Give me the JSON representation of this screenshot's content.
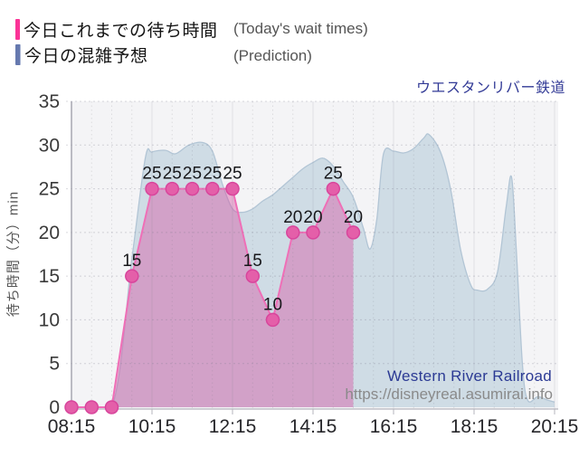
{
  "legend": {
    "items": [
      {
        "label": "今日これまでの待ち時間",
        "note": "(Today's wait times)",
        "color": "#fb3397"
      },
      {
        "label": "今日の混雑予想",
        "note": "(Prediction)",
        "color": "#6679af"
      }
    ]
  },
  "watermark": {
    "name": "Western River Railroad",
    "url": "https://disneyreal.asumirai.info"
  },
  "chart_data": {
    "type": "area",
    "title": "ウエスタンリバー鉄道",
    "ylabel": "待ち時間（分）min",
    "ylim": [
      0,
      35
    ],
    "y_ticks": [
      0,
      5,
      10,
      15,
      20,
      25,
      30,
      35
    ],
    "x_ticks": [
      "08:15",
      "10:15",
      "12:15",
      "14:15",
      "16:15",
      "18:15",
      "20:15"
    ],
    "x_start": "08:15",
    "x_end": "20:15",
    "grid": {
      "h_step": 5,
      "v_step_minutes": 30,
      "major_every_minutes": 120,
      "grid_on": true
    },
    "legend_position": "top-left",
    "series": [
      {
        "name": "今日の混雑予想 (Prediction)",
        "kind": "prediction",
        "style": "smooth_area",
        "fill": "#cfdce5",
        "stroke": "#b2c5d5",
        "points": [
          [
            "08:15",
            0
          ],
          [
            "09:15",
            0
          ],
          [
            "09:45",
            17
          ],
          [
            "10:05",
            28.5
          ],
          [
            "10:15",
            29.2
          ],
          [
            "10:35",
            29.4
          ],
          [
            "10:50",
            29.0
          ],
          [
            "11:10",
            30.0
          ],
          [
            "11:30",
            30.3
          ],
          [
            "11:45",
            29.3
          ],
          [
            "12:00",
            25.5
          ],
          [
            "12:15",
            22.7
          ],
          [
            "12:30",
            22.3
          ],
          [
            "12:45",
            22.7
          ],
          [
            "13:00",
            23.6
          ],
          [
            "13:15",
            24.3
          ],
          [
            "13:30",
            25.3
          ],
          [
            "13:45",
            26.3
          ],
          [
            "14:00",
            27.3
          ],
          [
            "14:15",
            28.0
          ],
          [
            "14:30",
            28.5
          ],
          [
            "14:45",
            27.6
          ],
          [
            "15:00",
            25.8
          ],
          [
            "15:15",
            24.0
          ],
          [
            "15:30",
            20.5
          ],
          [
            "15:40",
            18.1
          ],
          [
            "15:50",
            21.5
          ],
          [
            "16:00",
            29.0
          ],
          [
            "16:15",
            29.3
          ],
          [
            "16:30",
            29.1
          ],
          [
            "16:45",
            29.6
          ],
          [
            "17:00",
            30.8
          ],
          [
            "17:08",
            31.2
          ],
          [
            "17:25",
            29.2
          ],
          [
            "17:40",
            25.0
          ],
          [
            "17:55",
            18.0
          ],
          [
            "18:10",
            14.0
          ],
          [
            "18:20",
            13.4
          ],
          [
            "18:35",
            13.5
          ],
          [
            "18:50",
            15.5
          ],
          [
            "19:03",
            23.0
          ],
          [
            "19:11",
            26.3
          ],
          [
            "19:18",
            18.0
          ],
          [
            "19:27",
            5.0
          ],
          [
            "19:35",
            0.8
          ],
          [
            "19:50",
            1.2
          ],
          [
            "20:05",
            0.8
          ],
          [
            "20:15",
            0.6
          ]
        ]
      },
      {
        "name": "今日これまでの待ち時間 (Today's wait times)",
        "kind": "actual",
        "style": "area_line_points",
        "fill": "rgba(214,73,158,0.40)",
        "stroke": "#ef6fb7",
        "point_fill": "#e45fa9",
        "point_stroke": "#d8459c",
        "label_nonzero_points": true,
        "points": [
          [
            "08:15",
            0
          ],
          [
            "08:45",
            0
          ],
          [
            "09:15",
            0
          ],
          [
            "09:45",
            15
          ],
          [
            "10:15",
            25
          ],
          [
            "10:45",
            25
          ],
          [
            "11:15",
            25
          ],
          [
            "11:45",
            25
          ],
          [
            "12:15",
            25
          ],
          [
            "12:45",
            15
          ],
          [
            "13:15",
            10
          ],
          [
            "13:45",
            20
          ],
          [
            "14:15",
            20
          ],
          [
            "14:45",
            25
          ],
          [
            "15:15",
            20
          ]
        ]
      }
    ]
  }
}
